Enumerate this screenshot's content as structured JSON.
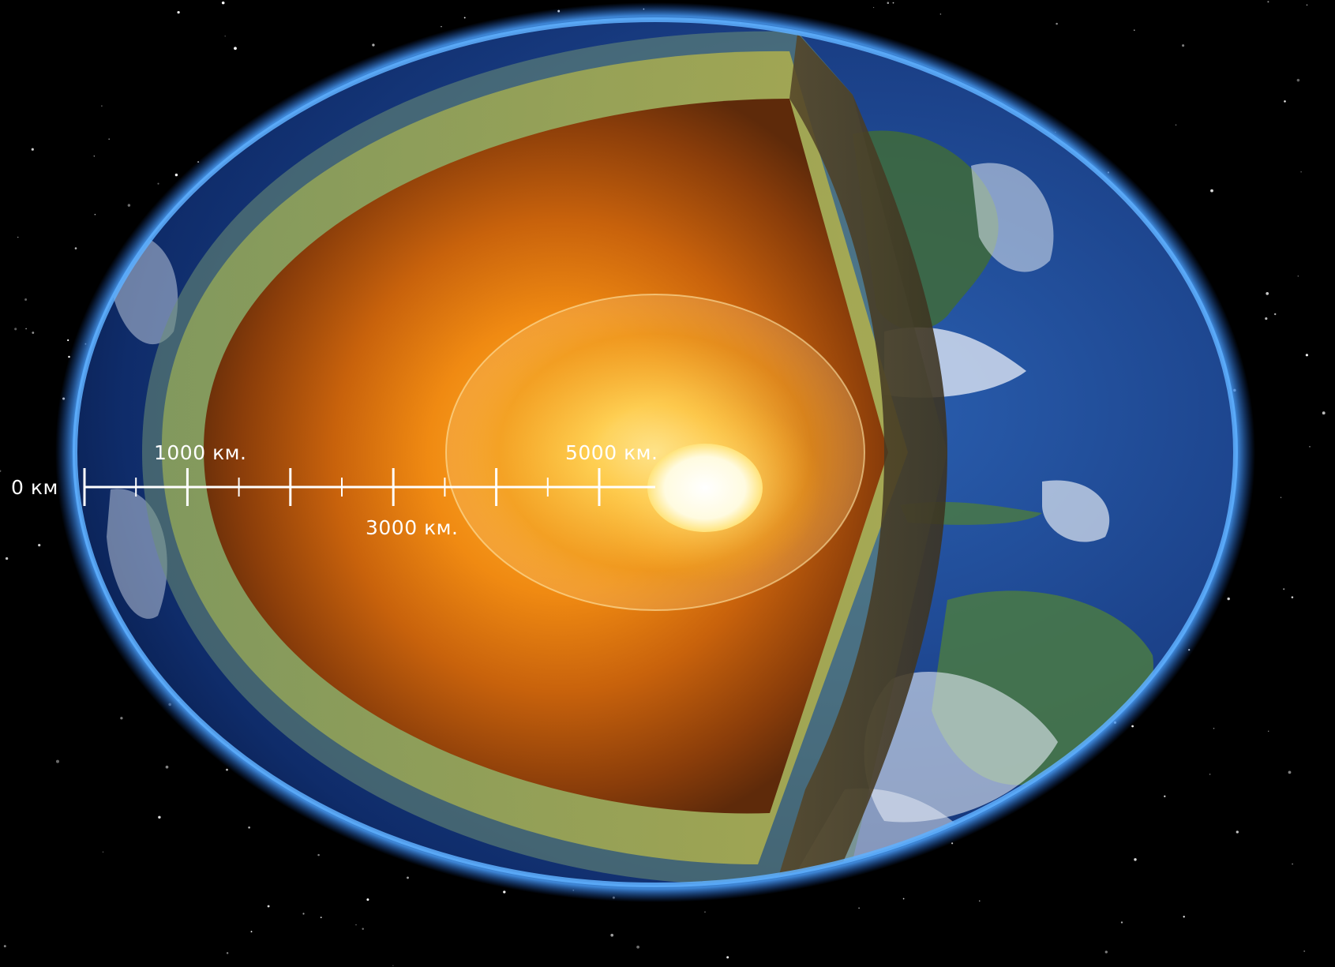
{
  "diagram": {
    "scale_labels": {
      "zero": "0 км",
      "km1000": "1000 км.",
      "km3000": "3000 км.",
      "km5000": "5000 км."
    }
  }
}
